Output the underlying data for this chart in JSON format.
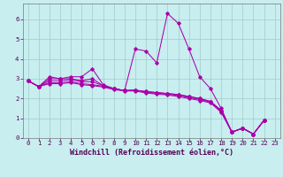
{
  "xlabel": "Windchill (Refroidissement éolien,°C)",
  "ylabel": "",
  "background_color": "#c8eef0",
  "grid_color": "#a0ccc8",
  "line_color": "#aa00aa",
  "x": [
    0,
    1,
    2,
    3,
    4,
    5,
    6,
    7,
    8,
    9,
    10,
    11,
    12,
    13,
    14,
    15,
    16,
    17,
    18,
    19,
    20,
    21,
    22,
    23
  ],
  "series": [
    [
      2.9,
      2.6,
      3.1,
      3.0,
      3.1,
      3.1,
      3.5,
      2.7,
      2.5,
      2.4,
      4.5,
      4.4,
      3.8,
      6.3,
      5.8,
      4.5,
      3.1,
      2.5,
      1.5,
      0.3,
      0.5,
      0.2,
      0.9,
      null
    ],
    [
      2.9,
      2.6,
      3.0,
      3.0,
      3.0,
      2.9,
      3.0,
      2.65,
      2.5,
      2.4,
      2.42,
      2.35,
      2.3,
      2.25,
      2.2,
      2.1,
      2.0,
      1.85,
      1.4,
      0.3,
      0.5,
      0.2,
      0.9,
      null
    ],
    [
      2.9,
      2.6,
      2.9,
      2.9,
      2.95,
      2.85,
      2.85,
      2.65,
      2.5,
      2.4,
      2.42,
      2.35,
      2.3,
      2.25,
      2.2,
      2.1,
      2.0,
      1.85,
      1.4,
      0.3,
      0.5,
      0.2,
      0.9,
      null
    ],
    [
      2.9,
      2.6,
      2.8,
      2.8,
      2.85,
      2.75,
      2.7,
      2.62,
      2.5,
      2.4,
      2.42,
      2.32,
      2.26,
      2.22,
      2.15,
      2.05,
      1.95,
      1.82,
      1.35,
      0.3,
      0.5,
      0.2,
      0.9,
      null
    ],
    [
      2.9,
      2.6,
      2.75,
      2.75,
      2.8,
      2.7,
      2.65,
      2.58,
      2.45,
      2.38,
      2.38,
      2.28,
      2.22,
      2.18,
      2.1,
      2.0,
      1.9,
      1.78,
      1.3,
      0.3,
      0.5,
      0.2,
      0.9,
      null
    ]
  ],
  "xlim": [
    -0.5,
    23.5
  ],
  "ylim": [
    0,
    6.8
  ],
  "yticks": [
    0,
    1,
    2,
    3,
    4,
    5,
    6
  ],
  "xticks": [
    0,
    1,
    2,
    3,
    4,
    5,
    6,
    7,
    8,
    9,
    10,
    11,
    12,
    13,
    14,
    15,
    16,
    17,
    18,
    19,
    20,
    21,
    22,
    23
  ],
  "tick_fontsize": 5.2,
  "xlabel_fontsize": 6.0,
  "marker": "D",
  "markersize": 1.8,
  "linewidth": 0.75
}
